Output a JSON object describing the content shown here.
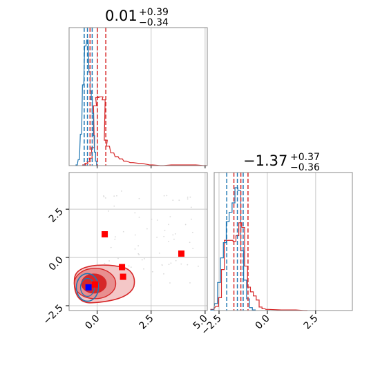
{
  "chart_data": {
    "type": "corner",
    "param_x": {
      "title_main": "0.01",
      "title_sup": "+0.39",
      "title_sub": "−0.34",
      "range": [
        -1.3,
        5.1
      ],
      "ticks": [
        0.0,
        2.5,
        5.0
      ],
      "tick_labels": [
        "0.0",
        "2.5",
        "5.0"
      ]
    },
    "param_y": {
      "title_main": "−1.37",
      "title_sup": "+0.37",
      "title_sub": "−0.36",
      "range": [
        -2.75,
        4.4
      ],
      "ticks": [
        -2.5,
        0.0,
        2.5
      ],
      "tick_labels": [
        "−2.5",
        "0.0",
        "2.5"
      ]
    },
    "colors": {
      "red": "#d62728",
      "blue": "#1f77b4",
      "marker_blue": "#0000ff",
      "marker_red": "#ff0000"
    },
    "hist_x": {
      "red": {
        "bins": [
          [
            -0.6,
            1
          ],
          [
            -0.5,
            3
          ],
          [
            -0.4,
            5
          ],
          [
            -0.3,
            10
          ],
          [
            -0.2,
            24
          ],
          [
            -0.1,
            80
          ],
          [
            0.0,
            91
          ],
          [
            0.1,
            92
          ],
          [
            0.2,
            92
          ],
          [
            0.3,
            88
          ],
          [
            0.4,
            34
          ],
          [
            0.5,
            26
          ],
          [
            0.7,
            17
          ],
          [
            0.9,
            12
          ],
          [
            1.1,
            9
          ],
          [
            1.3,
            6
          ],
          [
            1.6,
            4
          ],
          [
            2.0,
            3
          ],
          [
            2.5,
            1
          ],
          [
            3.0,
            0
          ],
          [
            3.5,
            1
          ],
          [
            4.0,
            1
          ],
          [
            4.5,
            1
          ],
          [
            5.0,
            0
          ]
        ]
      },
      "blue": {
        "bins": [
          [
            -0.95,
            1
          ],
          [
            -0.85,
            8
          ],
          [
            -0.75,
            42
          ],
          [
            -0.65,
            108
          ],
          [
            -0.55,
            160
          ],
          [
            -0.45,
            168
          ],
          [
            -0.35,
            125
          ],
          [
            -0.3,
            100
          ],
          [
            -0.25,
            88
          ],
          [
            -0.2,
            70
          ],
          [
            -0.15,
            40
          ],
          [
            -0.1,
            18
          ],
          [
            -0.05,
            6
          ],
          [
            0.0,
            0
          ]
        ]
      },
      "red_quantiles": [
        -0.33,
        0.01,
        0.4
      ],
      "blue_quantiles": [
        -0.6,
        -0.45,
        -0.23
      ]
    },
    "hist_y": {
      "red": {
        "bins": [
          [
            -2.85,
            2
          ],
          [
            -2.6,
            7
          ],
          [
            -2.45,
            22
          ],
          [
            -2.3,
            70
          ],
          [
            -2.15,
            120
          ],
          [
            -2.0,
            120
          ],
          [
            -1.85,
            120
          ],
          [
            -1.7,
            118
          ],
          [
            -1.55,
            128
          ],
          [
            -1.4,
            150
          ],
          [
            -1.25,
            142
          ],
          [
            -1.1,
            76
          ],
          [
            -0.95,
            40
          ],
          [
            -0.8,
            32
          ],
          [
            -0.65,
            25
          ],
          [
            -0.5,
            18
          ],
          [
            -0.35,
            6
          ],
          [
            -0.2,
            3
          ],
          [
            0.0,
            2
          ],
          [
            0.8,
            1
          ],
          [
            1.4,
            1
          ],
          [
            2.0,
            0
          ]
        ]
      },
      "blue": {
        "bins": [
          [
            -2.85,
            1
          ],
          [
            -2.65,
            12
          ],
          [
            -2.5,
            48
          ],
          [
            -2.35,
            90
          ],
          [
            -2.2,
            116
          ],
          [
            -2.05,
            152
          ],
          [
            -1.9,
            168
          ],
          [
            -1.75,
            184
          ],
          [
            -1.6,
            210
          ],
          [
            -1.45,
            205
          ],
          [
            -1.3,
            102
          ],
          [
            -1.15,
            52
          ],
          [
            -1.0,
            20
          ],
          [
            -0.85,
            5
          ],
          [
            -0.7,
            1
          ]
        ]
      },
      "red_quantiles": [
        -1.73,
        -1.37,
        -1.0
      ],
      "blue_quantiles": [
        -2.1,
        -1.55,
        -1.25
      ]
    },
    "scatter_markers": {
      "red": [
        [
          0.35,
          1.2
        ],
        [
          3.9,
          0.2
        ],
        [
          1.15,
          -0.5
        ],
        [
          1.2,
          -1.0
        ],
        [
          -0.1,
          -1.4
        ]
      ],
      "blue": [
        [
          -0.4,
          -1.55
        ]
      ]
    },
    "contour_centers": {
      "red": [
        -0.1,
        -1.35
      ],
      "blue": [
        -0.45,
        -1.55
      ]
    }
  }
}
